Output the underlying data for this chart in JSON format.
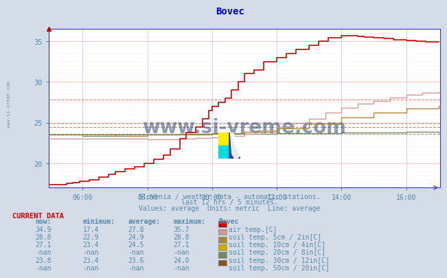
{
  "title": "Bovec",
  "title_color": "#0000cc",
  "bg_color": "#d4dce8",
  "plot_bg_color": "#ffffff",
  "grid_color_h": "#ffaaaa",
  "grid_color_v": "#bbbbff",
  "axis_color": "#3333cc",
  "text_color": "#5588aa",
  "subtitle1": "Slovenia / weather data - automatic stations.",
  "subtitle2": "last 12 hrs / 5 minutes.",
  "subtitle3": "Values: average  Units: metric  Line: average",
  "current_data_label": "CURRENT DATA",
  "col_headers": [
    "now:",
    "minimum:",
    "average:",
    "maximum:",
    "Bovec"
  ],
  "rows": [
    {
      "now": "34.9",
      "min": "17.4",
      "avg": "27.8",
      "max": "35.7",
      "color": "#cc0000",
      "label": "air temp.[C]"
    },
    {
      "now": "28.8",
      "min": "22.9",
      "avg": "24.9",
      "max": "28.8",
      "color": "#cc9999",
      "label": "soil temp. 5cm / 2in[C]"
    },
    {
      "now": "27.1",
      "min": "23.4",
      "avg": "24.5",
      "max": "27.1",
      "color": "#aa8833",
      "label": "soil temp. 10cm / 4in[C]"
    },
    {
      "now": "-nan",
      "min": "-nan",
      "avg": "-nan",
      "max": "-nan",
      "color": "#ccaa00",
      "label": "soil temp. 20cm / 8in[C]"
    },
    {
      "now": "23.8",
      "min": "23.4",
      "avg": "23.6",
      "max": "24.0",
      "color": "#778866",
      "label": "soil temp. 30cm / 12in[C]"
    },
    {
      "now": "-nan",
      "min": "-nan",
      "avg": "-nan",
      "max": "-nan",
      "color": "#885522",
      "label": "soil temp. 50cm / 20in[C]"
    }
  ],
  "xmin": 4.95,
  "xmax": 17.05,
  "ymin": 17.0,
  "ymax": 36.5,
  "yticks": [
    20,
    25,
    30,
    35
  ],
  "xtick_labels": [
    "06:00",
    "08:00",
    "10:00",
    "12:00",
    "14:00",
    "16:00"
  ],
  "xtick_positions": [
    6,
    8,
    10,
    12,
    14,
    16
  ],
  "line_colors": {
    "air": "#cc0000",
    "soil5": "#cc9999",
    "soil10": "#aa8833",
    "soil30": "#778866"
  },
  "avg_lines": [
    {
      "y": 27.8,
      "color": "#ff6666"
    },
    {
      "y": 24.9,
      "color": "#cc9999"
    },
    {
      "y": 24.5,
      "color": "#aa8833"
    },
    {
      "y": 23.6,
      "color": "#778866"
    }
  ],
  "watermark": "www.si-vreme.com",
  "watermark_color": "#1a3a6a"
}
